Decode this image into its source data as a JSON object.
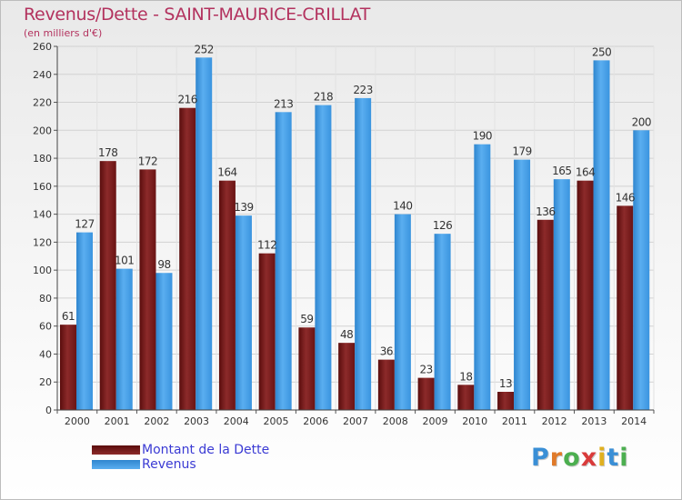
{
  "chart_data": {
    "type": "bar",
    "title": "Revenus/Dette - SAINT-MAURICE-CRILLAT",
    "subtitle": "(en milliers d'€)",
    "categories": [
      "2000",
      "2001",
      "2002",
      "2003",
      "2004",
      "2005",
      "2006",
      "2007",
      "2008",
      "2009",
      "2010",
      "2011",
      "2012",
      "2013",
      "2014"
    ],
    "series": [
      {
        "name": "Montant de la Dette",
        "color": "#7a1a1a",
        "values": [
          61,
          178,
          172,
          216,
          164,
          112,
          59,
          48,
          36,
          23,
          18,
          13,
          136,
          164,
          146
        ]
      },
      {
        "name": "Revenus",
        "color": "#3a9be6",
        "values": [
          127,
          101,
          98,
          252,
          139,
          213,
          218,
          223,
          140,
          126,
          190,
          179,
          165,
          250,
          200
        ]
      }
    ],
    "ylim": [
      0,
      260
    ],
    "yticks": [
      0,
      20,
      40,
      60,
      80,
      100,
      120,
      140,
      160,
      180,
      200,
      220,
      240,
      260
    ],
    "grid": true,
    "legend_position": "bottom-left"
  },
  "logo": {
    "letters": [
      "P",
      "r",
      "o",
      "x",
      "i",
      "t",
      "i"
    ],
    "colors": [
      "#3a8fd6",
      "#e07a2a",
      "#4caf50",
      "#d93b3b",
      "#e0b020",
      "#3a8fd6",
      "#4caf50"
    ]
  }
}
